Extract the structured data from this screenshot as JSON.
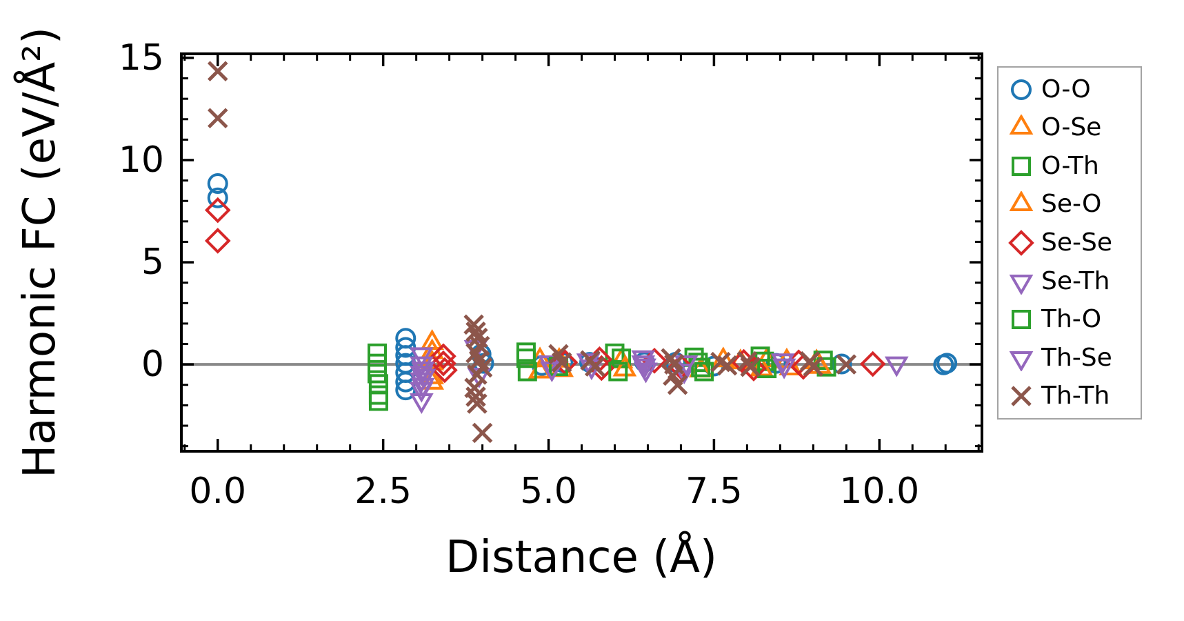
{
  "chart_data": {
    "type": "scatter",
    "title": "",
    "xlabel": "Distance (Å)",
    "ylabel": "Harmonic FC (eV/Å²)",
    "xlim": [
      -0.55,
      11.55
    ],
    "ylim": [
      -4.25,
      15.2
    ],
    "grid": false,
    "legend_position": "outside-right",
    "xticks": {
      "major": [
        0,
        2.5,
        5,
        7.5,
        10
      ],
      "labels": [
        "0.0",
        "2.5",
        "5.0",
        "7.5",
        "10.0"
      ],
      "minor_step": 0.5
    },
    "yticks": {
      "major": [
        0,
        5,
        10,
        15
      ],
      "labels": [
        "0",
        "5",
        "10",
        "15"
      ],
      "minor_step": 1
    },
    "zero_line": {
      "y": 0,
      "color": "#888888"
    },
    "frame_color": "#000000",
    "series": [
      {
        "name": "O-O",
        "marker": "circle",
        "color": "#1f77b4",
        "points": [
          [
            0,
            8.85
          ],
          [
            0,
            8.15
          ],
          [
            2.84,
            1.28
          ],
          [
            2.84,
            0.83
          ],
          [
            2.84,
            0.44
          ],
          [
            2.84,
            0.05
          ],
          [
            2.84,
            -0.4
          ],
          [
            2.84,
            -0.86
          ],
          [
            2.84,
            -1.25
          ],
          [
            3.98,
            0.5
          ],
          [
            4.02,
            0.05
          ],
          [
            4.9,
            -0.05
          ],
          [
            5.22,
            0.08
          ],
          [
            5.62,
            0.1
          ],
          [
            6.45,
            0.12
          ],
          [
            6.92,
            0.1
          ],
          [
            7.5,
            -0.08
          ],
          [
            8.44,
            0.05
          ],
          [
            9.43,
            0.02
          ],
          [
            10.97,
            -0.02
          ],
          [
            11.02,
            0.06
          ]
        ]
      },
      {
        "name": "O-Se",
        "marker": "triangle-up",
        "color": "#ff7f0e",
        "points": [
          [
            3.24,
            1.05
          ],
          [
            3.24,
            0.6
          ],
          [
            3.24,
            0.05
          ],
          [
            4.87,
            0.2
          ],
          [
            5.16,
            0.18
          ],
          [
            6.1,
            0.15
          ],
          [
            7.64,
            0.2
          ],
          [
            8.3,
            0.2
          ],
          [
            8.6,
            0.15
          ],
          [
            9.05,
            0.1
          ]
        ]
      },
      {
        "name": "O-Th",
        "marker": "square",
        "color": "#2ca02c",
        "points": [
          [
            2.41,
            0.55
          ],
          [
            2.41,
            0.05
          ],
          [
            2.41,
            -0.45
          ],
          [
            4.66,
            0.6
          ],
          [
            4.66,
            0.3
          ],
          [
            6.0,
            0.55
          ],
          [
            6.1,
            0.3
          ],
          [
            7.2,
            0.35
          ],
          [
            7.26,
            0.1
          ],
          [
            8.2,
            0.4
          ],
          [
            8.26,
            0.15
          ],
          [
            9.15,
            0.2
          ]
        ]
      },
      {
        "name": "Se-O",
        "marker": "triangle-up",
        "color": "#ff7f0e",
        "points": [
          [
            3.24,
            -0.63
          ],
          [
            3.24,
            -0.9
          ],
          [
            4.87,
            -0.35
          ],
          [
            5.2,
            -0.28
          ],
          [
            6.15,
            -0.25
          ],
          [
            7.3,
            -0.3
          ],
          [
            7.9,
            0.1
          ],
          [
            8.22,
            -0.25
          ],
          [
            8.66,
            -0.2
          ],
          [
            9.1,
            -0.12
          ]
        ]
      },
      {
        "name": "Se-Se",
        "marker": "diamond",
        "color": "#d62728",
        "points": [
          [
            0,
            7.55
          ],
          [
            0,
            6.05
          ],
          [
            3.41,
            0.4
          ],
          [
            3.41,
            0.05
          ],
          [
            3.43,
            -0.28
          ],
          [
            5.25,
            0.1
          ],
          [
            5.77,
            0.25
          ],
          [
            5.8,
            -0.18
          ],
          [
            6.6,
            0.18
          ],
          [
            7.0,
            -0.12
          ],
          [
            7.95,
            0.12
          ],
          [
            8.1,
            -0.2
          ],
          [
            8.78,
            0.1
          ],
          [
            8.85,
            -0.12
          ],
          [
            9.9,
            0.02
          ]
        ]
      },
      {
        "name": "Se-Th",
        "marker": "triangle-down",
        "color": "#9467bd",
        "points": [
          [
            3.08,
            0.5
          ],
          [
            3.08,
            0.05
          ],
          [
            3.08,
            -0.4
          ],
          [
            3.08,
            -0.73
          ],
          [
            3.08,
            -1.2
          ],
          [
            3.08,
            -1.75
          ],
          [
            3.9,
            0.85
          ],
          [
            3.95,
            -0.5
          ],
          [
            5.02,
            0.1
          ],
          [
            5.6,
            0.2
          ],
          [
            6.43,
            0.35
          ],
          [
            6.43,
            0.1
          ],
          [
            7.05,
            -0.3
          ],
          [
            8.54,
            0.2
          ],
          [
            10.26,
            0.05
          ]
        ]
      },
      {
        "name": "Th-O",
        "marker": "square",
        "color": "#2ca02c",
        "points": [
          [
            2.43,
            -0.95
          ],
          [
            2.43,
            -1.5
          ],
          [
            2.43,
            -1.8
          ],
          [
            4.68,
            -0.35
          ],
          [
            5.15,
            -0.1
          ],
          [
            6.05,
            -0.35
          ],
          [
            7.3,
            -0.15
          ],
          [
            7.35,
            -0.35
          ],
          [
            8.3,
            -0.2
          ],
          [
            9.2,
            -0.12
          ]
        ]
      },
      {
        "name": "Th-Se",
        "marker": "triangle-down",
        "color": "#9467bd",
        "points": [
          [
            3.1,
            -0.2
          ],
          [
            3.12,
            -0.55
          ],
          [
            3.1,
            -1.0
          ],
          [
            5.05,
            -0.2
          ],
          [
            5.65,
            -0.1
          ],
          [
            6.45,
            -0.05
          ],
          [
            6.47,
            -0.25
          ],
          [
            7.08,
            0.1
          ],
          [
            8.56,
            -0.05
          ]
        ]
      },
      {
        "name": "Th-Th",
        "marker": "x",
        "color": "#8c564b",
        "points": [
          [
            0,
            14.35
          ],
          [
            0,
            12.05
          ],
          [
            3.87,
            1.95
          ],
          [
            3.9,
            1.6
          ],
          [
            3.93,
            1.3
          ],
          [
            3.96,
            0.9
          ],
          [
            3.9,
            0.55
          ],
          [
            3.95,
            0.2
          ],
          [
            4.0,
            -0.15
          ],
          [
            3.92,
            -0.5
          ],
          [
            3.88,
            -1.15
          ],
          [
            3.9,
            -1.58
          ],
          [
            3.92,
            -1.92
          ],
          [
            4.0,
            -3.35
          ],
          [
            5.15,
            0.5
          ],
          [
            5.2,
            0.1
          ],
          [
            5.63,
            0.2
          ],
          [
            5.7,
            -0.1
          ],
          [
            6.85,
            0.3
          ],
          [
            6.9,
            0.0
          ],
          [
            6.88,
            -0.55
          ],
          [
            6.95,
            -1.0
          ],
          [
            7.6,
            0.12
          ],
          [
            7.7,
            -0.05
          ],
          [
            8.0,
            0.15
          ],
          [
            8.05,
            -0.12
          ],
          [
            8.95,
            0.15
          ],
          [
            9.0,
            -0.1
          ],
          [
            9.5,
            0.0
          ]
        ]
      }
    ]
  }
}
